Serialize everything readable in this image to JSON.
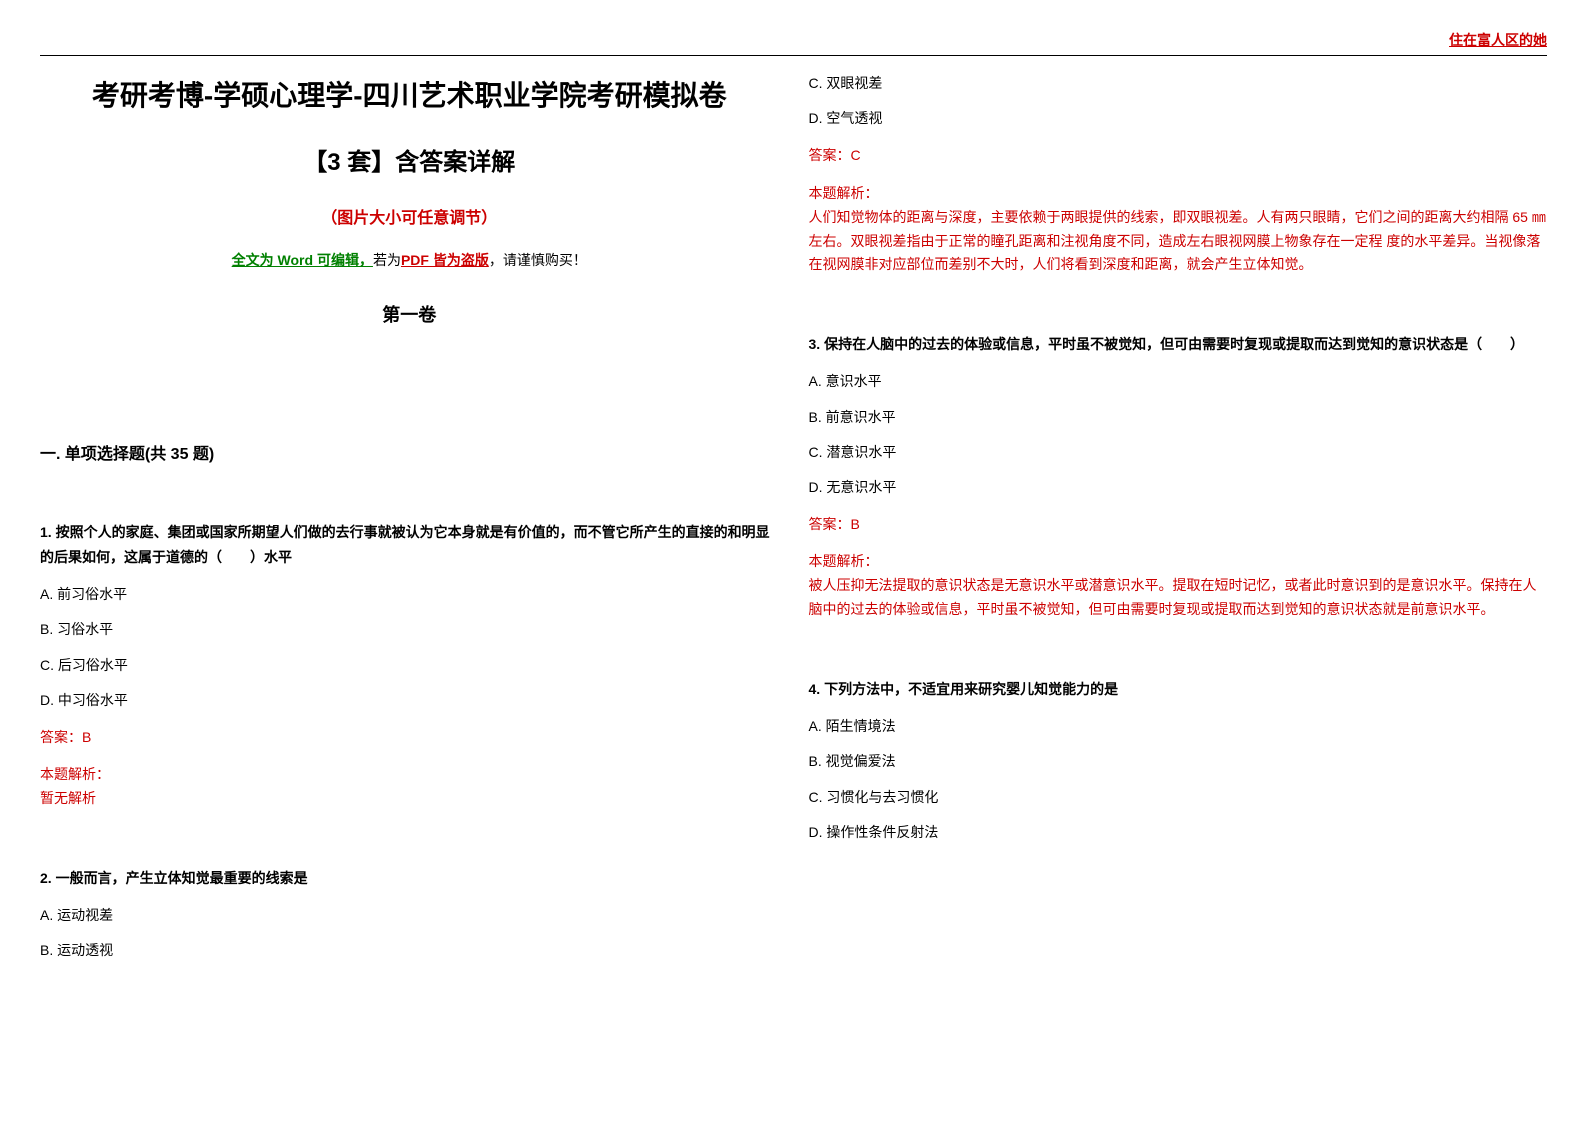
{
  "header": {
    "watermark": "住在富人区的她"
  },
  "left": {
    "title_main": "考研考博-学硕心理学-四川艺术职业学院考研模拟卷",
    "title_sub": "【3 套】含答案详解",
    "note_red": "（图片大小可任意调节）",
    "edit_prefix": "全文为 Word 可编辑，",
    "edit_mid": "若为",
    "edit_pdf": "PDF 皆为盗版",
    "edit_suffix": "，请谨慎购买！",
    "volume": "第一卷",
    "section": "一. 单项选择题(共 35 题)",
    "q1": {
      "text": "1. 按照个人的家庭、集团或国家所期望人们做的去行事就被认为它本身就是有价值的，而不管它所产生的直接的和明显的后果如何，这属于道德的（　　）水平",
      "a": "A. 前习俗水平",
      "b": "B. 习俗水平",
      "c": "C. 后习俗水平",
      "d": "D. 中习俗水平",
      "answer": "答案：B",
      "analysis_label": "本题解析：",
      "analysis": "暂无解析"
    },
    "q2": {
      "text": "2. 一般而言，产生立体知觉最重要的线索是",
      "a": "A. 运动视差",
      "b": "B. 运动透视"
    }
  },
  "right": {
    "q2_cont": {
      "c": "C. 双眼视差",
      "d": "D. 空气透视",
      "answer": "答案：C",
      "analysis_label": "本题解析：",
      "analysis": "人们知觉物体的距离与深度，主要依赖于两眼提供的线索，即双眼视差。人有两只眼睛，它们之间的距离大约相隔 65 ㎜ 左右。双眼视差指由于正常的瞳孔距离和注视角度不同，造成左右眼视网膜上物象存在一定程 度的水平差异。当视像落在视网膜非对应部位而差别不大时，人们将看到深度和距离，就会产生立体知觉。"
    },
    "q3": {
      "text": "3. 保持在人脑中的过去的体验或信息，平时虽不被觉知，但可由需要时复现或提取而达到觉知的意识状态是（　　）",
      "a": "A. 意识水平",
      "b": "B. 前意识水平",
      "c": "C. 潜意识水平",
      "d": "D. 无意识水平",
      "answer": "答案：B",
      "analysis_label": "本题解析：",
      "analysis": "被人压抑无法提取的意识状态是无意识水平或潜意识水平。提取在短时记忆，或者此时意识到的是意识水平。保持在人脑中的过去的体验或信息，平时虽不被觉知，但可由需要时复现或提取而达到觉知的意识状态就是前意识水平。"
    },
    "q4": {
      "text": "4. 下列方法中，不适宜用来研究婴儿知觉能力的是",
      "a": "A. 陌生情境法",
      "b": "B. 视觉偏爱法",
      "c": "C. 习惯化与去习惯化",
      "d": "D. 操作性条件反射法"
    }
  }
}
